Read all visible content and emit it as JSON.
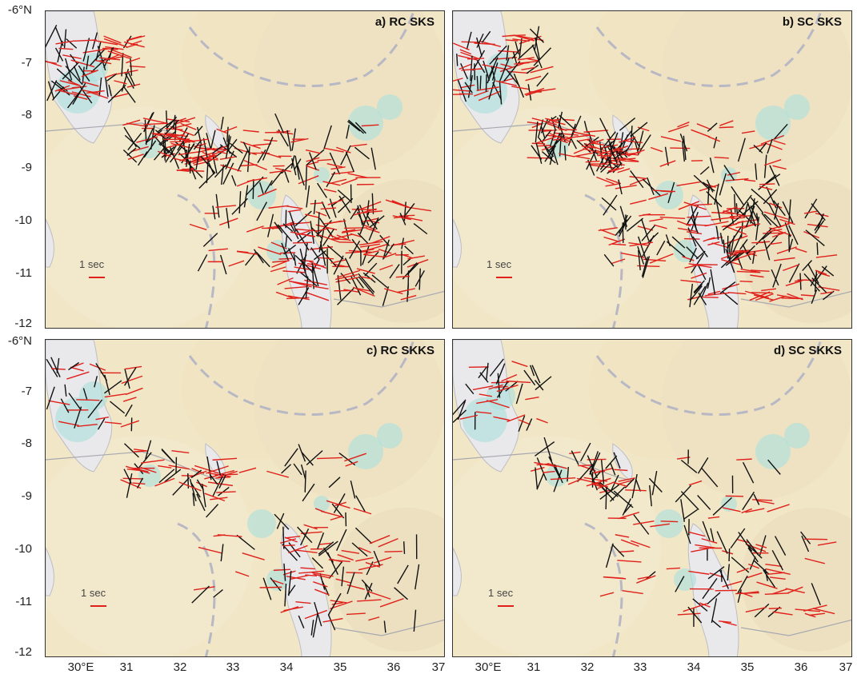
{
  "panels": [
    {
      "title": "a) RC SKS",
      "scale_label": "1 sec"
    },
    {
      "title": "b) SC SKS",
      "scale_label": "1 sec"
    },
    {
      "title": "c) RC SKKS",
      "scale_label": "1 sec"
    },
    {
      "title": "d) SC SKKS",
      "scale_label": "1 sec"
    }
  ],
  "axes": {
    "lat_ticks": [
      "-6°N",
      "-7",
      "-8",
      "-9",
      "-10",
      "-11",
      "-12"
    ],
    "lon_ticks": [
      "30°E",
      "31",
      "32",
      "33",
      "34",
      "35",
      "36",
      "37"
    ],
    "lat_range": [
      -12,
      -6
    ],
    "lon_range": [
      29.5,
      37
    ]
  },
  "colors": {
    "rc_bar": "#e0201a",
    "sc_bar": "#111111",
    "land": "#f1e6c6",
    "lake": "#e9e9ec",
    "wetland": "#aee0dc",
    "border": "#b8b8c4"
  },
  "legend": {
    "scale_bar_seconds": 1
  }
}
